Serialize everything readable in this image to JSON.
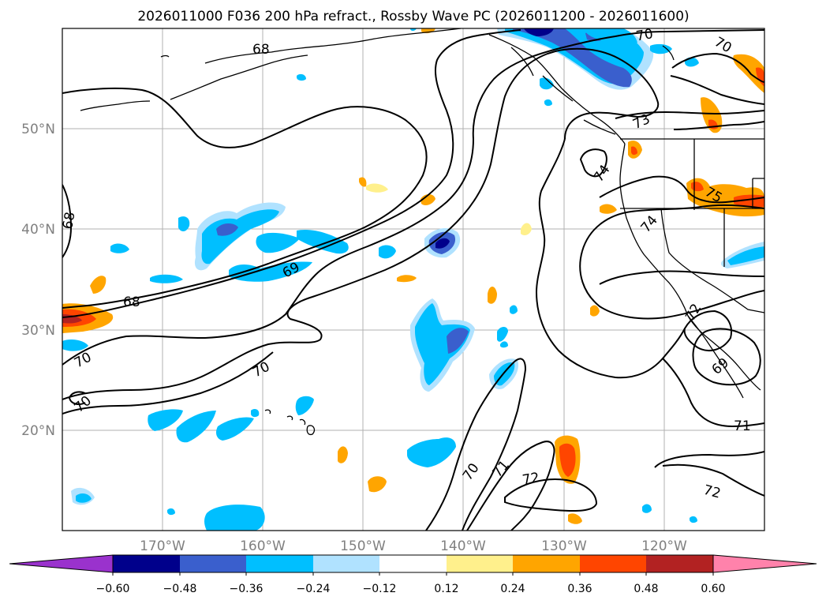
{
  "title": "2026011000 F036 200 hPa refract., Rossby Wave PC (2026011200 - 2026011600)",
  "lon_ticks": [
    "170°W",
    "160°W",
    "150°W",
    "140°W",
    "130°W",
    "120°W"
  ],
  "lat_ticks": [
    "50°N",
    "40°N",
    "30°N",
    "20°N"
  ],
  "colorbar": {
    "tick_labels": [
      "−0.60",
      "−0.48",
      "−0.36",
      "−0.24",
      "−0.12",
      "0.12",
      "0.24",
      "0.36",
      "0.48",
      "0.60"
    ],
    "levels": [
      -0.72,
      -0.6,
      -0.48,
      -0.36,
      -0.24,
      -0.12,
      0.12,
      0.24,
      0.36,
      0.48,
      0.6,
      0.72
    ],
    "colors": [
      "#9a32cd",
      "#00008b",
      "#3a5fcd",
      "#00bfff",
      "#b0e2ff",
      "#ffffff",
      "#fff08c",
      "#ffa500",
      "#ff4500",
      "#b22222",
      "#ff82ab"
    ]
  },
  "contour_labels": [
    "68",
    "68",
    "68",
    "69",
    "69",
    "70",
    "70",
    "70",
    "70",
    "70",
    "70",
    "71",
    "71",
    "72",
    "72",
    "72",
    "73",
    "74",
    "74",
    "75"
  ]
}
